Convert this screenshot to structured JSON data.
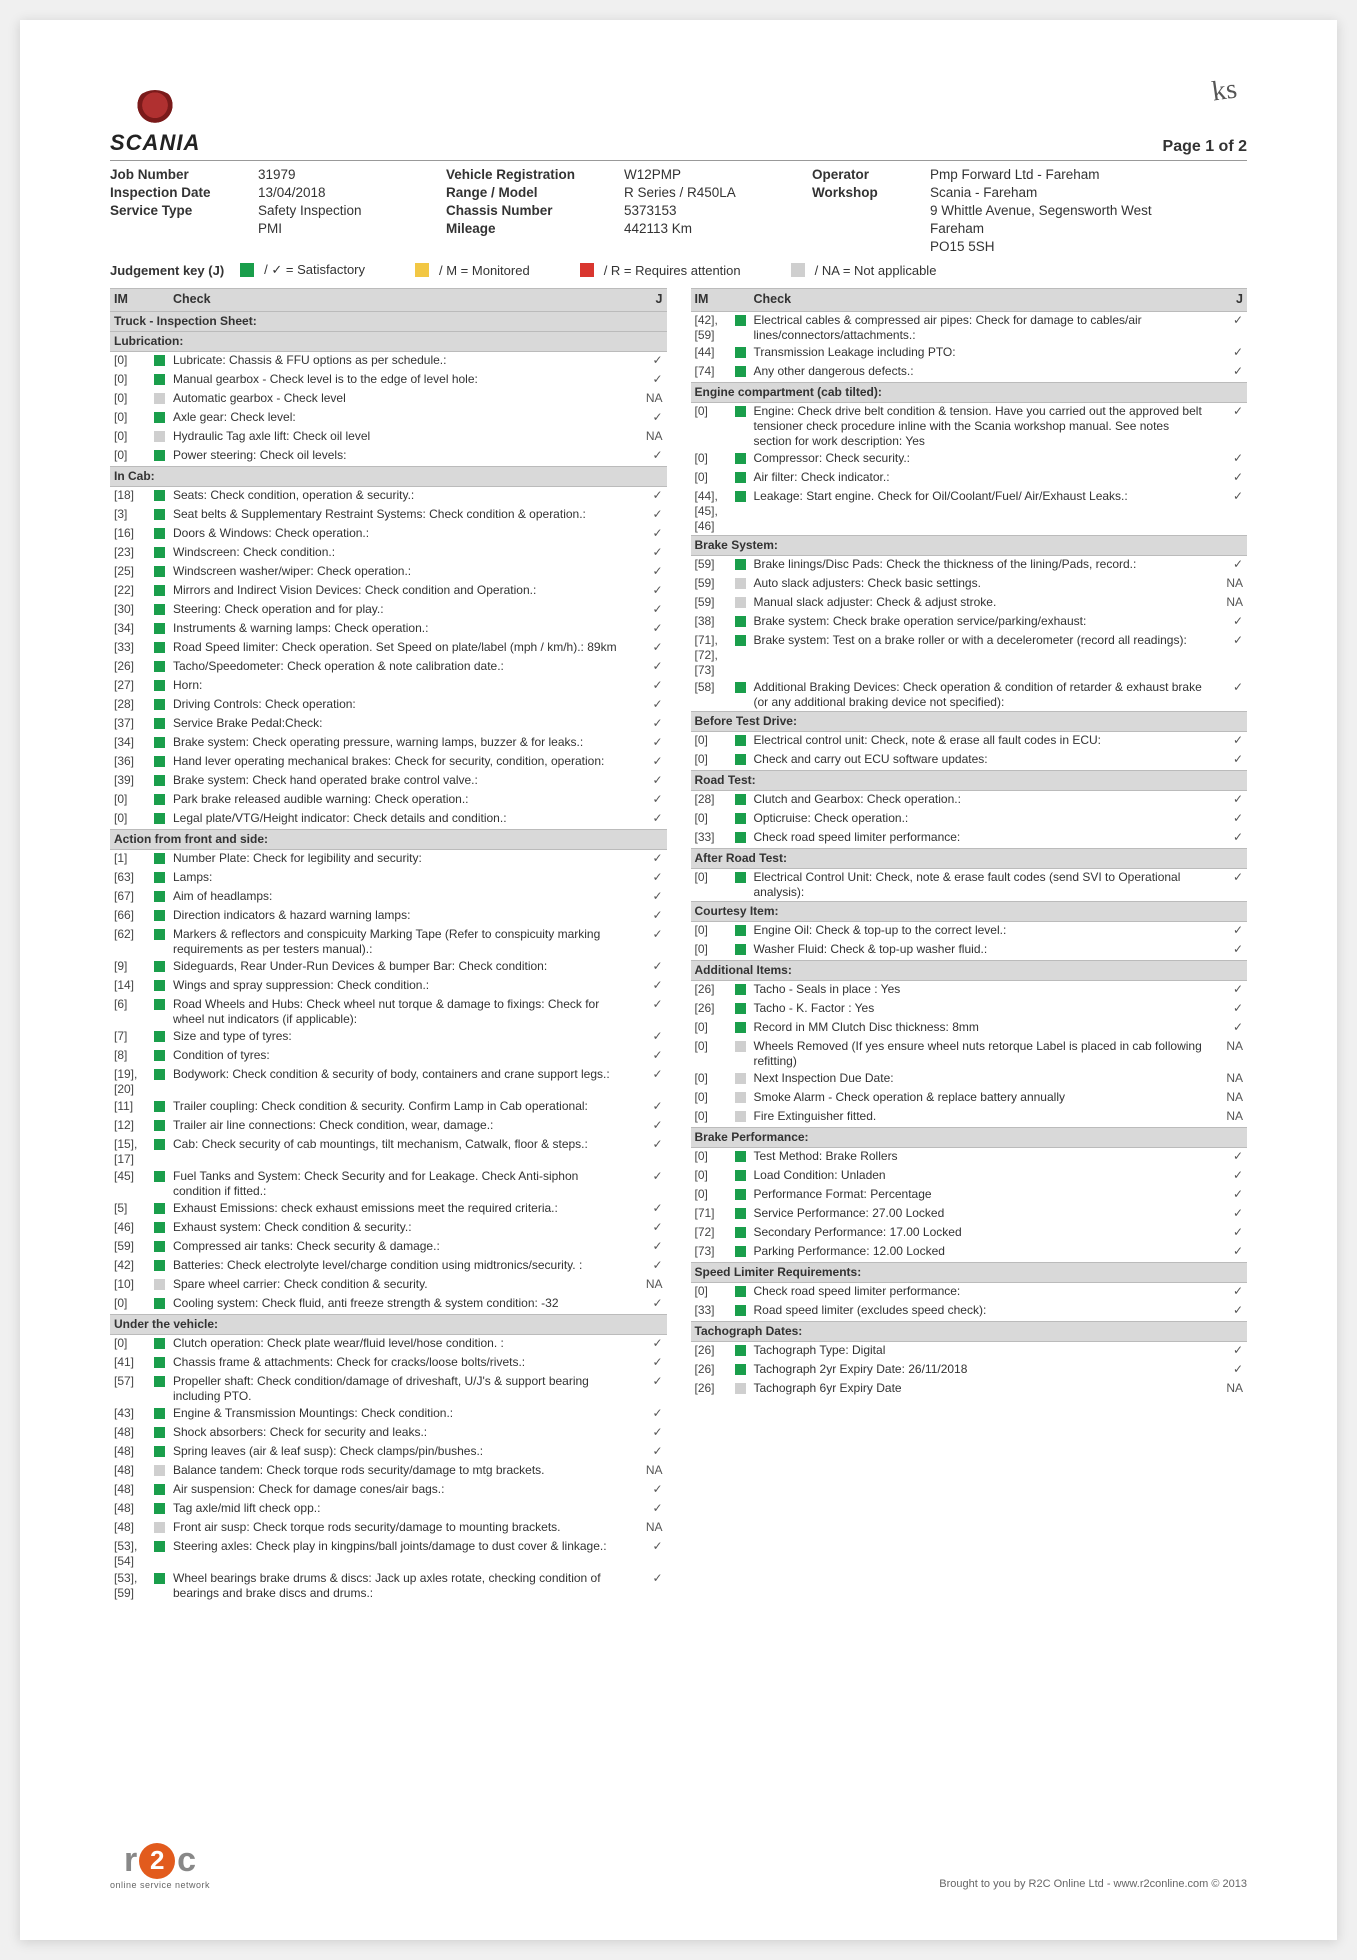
{
  "page_label": "Page 1 of 2",
  "brand": "SCANIA",
  "initials": "ks",
  "meta": {
    "job_number_l": "Job Number",
    "job_number": "31979",
    "vreg_l": "Vehicle Registration",
    "vreg": "W12PMP",
    "operator_l": "Operator",
    "operator": "Pmp Forward Ltd - Fareham",
    "insp_date_l": "Inspection Date",
    "insp_date": "13/04/2018",
    "range_l": "Range / Model",
    "range": "R Series / R450LA",
    "workshop_l": "Workshop",
    "workshop1": "Scania - Fareham",
    "workshop2": "9 Whittle Avenue, Segensworth West",
    "workshop3": "Fareham",
    "workshop4": "PO15 5SH",
    "svc_l": "Service Type",
    "svc1": "Safety Inspection",
    "svc2": "PMI",
    "chassis_l": "Chassis Number",
    "chassis": "5373153",
    "mileage_l": "Mileage",
    "mileage": "442113 Km"
  },
  "judgement": {
    "title": "Judgement key (J)",
    "sat": "/ ✓ = Satisfactory",
    "mon": "/ M = Monitored",
    "req": "/ R = Requires attention",
    "na": "/ NA = Not applicable"
  },
  "colors": {
    "green": "#1a9e4b",
    "amber": "#f2c744",
    "red": "#d9362f",
    "grey": "#cfcfcf"
  },
  "hdr": {
    "im": "IM",
    "check": "Check",
    "j": "J"
  },
  "left": [
    {
      "section": "Truck - Inspection Sheet:"
    },
    {
      "section": "Lubrication:"
    },
    {
      "im": "[0]",
      "c": "green",
      "t": "Lubricate: Chassis & FFU options as per schedule.:",
      "j": "✓"
    },
    {
      "im": "[0]",
      "c": "green",
      "t": "Manual gearbox - Check level is to the edge of level hole:",
      "j": "✓"
    },
    {
      "im": "[0]",
      "c": "grey",
      "t": "Automatic gearbox - Check level",
      "j": "NA"
    },
    {
      "im": "[0]",
      "c": "green",
      "t": "Axle gear: Check level:",
      "j": "✓"
    },
    {
      "im": "[0]",
      "c": "grey",
      "t": "Hydraulic Tag axle lift: Check oil level",
      "j": "NA"
    },
    {
      "im": "[0]",
      "c": "green",
      "t": "Power steering: Check oil levels:",
      "j": "✓"
    },
    {
      "section": "In Cab:"
    },
    {
      "im": "[18]",
      "c": "green",
      "t": "Seats: Check condition, operation & security.:",
      "j": "✓"
    },
    {
      "im": "[3]",
      "c": "green",
      "t": "Seat belts & Supplementary Restraint Systems: Check condition & operation.:",
      "j": "✓"
    },
    {
      "im": "[16]",
      "c": "green",
      "t": "Doors & Windows: Check operation.:",
      "j": "✓"
    },
    {
      "im": "[23]",
      "c": "green",
      "t": "Windscreen: Check condition.:",
      "j": "✓"
    },
    {
      "im": "[25]",
      "c": "green",
      "t": "Windscreen washer/wiper: Check operation.:",
      "j": "✓"
    },
    {
      "im": "[22]",
      "c": "green",
      "t": "Mirrors and Indirect Vision Devices: Check condition and Operation.:",
      "j": "✓"
    },
    {
      "im": "[30]",
      "c": "green",
      "t": "Steering: Check operation and for play.:",
      "j": "✓"
    },
    {
      "im": "[34]",
      "c": "green",
      "t": "Instruments & warning lamps: Check operation.:",
      "j": "✓"
    },
    {
      "im": "[33]",
      "c": "green",
      "t": "Road Speed limiter:  Check operation. Set Speed on plate/label (mph / km/h).: 89km",
      "j": "✓"
    },
    {
      "im": "[26]",
      "c": "green",
      "t": "Tacho/Speedometer: Check operation & note calibration date.:",
      "j": "✓"
    },
    {
      "im": "[27]",
      "c": "green",
      "t": "Horn:",
      "j": "✓"
    },
    {
      "im": "[28]",
      "c": "green",
      "t": "Driving Controls: Check operation:",
      "j": "✓"
    },
    {
      "im": "[37]",
      "c": "green",
      "t": "Service Brake Pedal:Check:",
      "j": "✓"
    },
    {
      "im": "[34]",
      "c": "green",
      "t": "Brake system: Check operating pressure, warning lamps, buzzer & for leaks.:",
      "j": "✓"
    },
    {
      "im": "[36]",
      "c": "green",
      "t": "Hand lever operating mechanical brakes: Check for security, condition, operation:",
      "j": "✓"
    },
    {
      "im": "[39]",
      "c": "green",
      "t": "Brake system: Check hand operated brake control valve.:",
      "j": "✓"
    },
    {
      "im": "[0]",
      "c": "green",
      "t": "Park brake released audible warning: Check operation.:",
      "j": "✓"
    },
    {
      "im": "[0]",
      "c": "green",
      "t": "Legal plate/VTG/Height indicator: Check details and condition.:",
      "j": "✓"
    },
    {
      "section": "Action from front and side:"
    },
    {
      "im": "[1]",
      "c": "green",
      "t": "Number Plate: Check for legibility and security:",
      "j": "✓"
    },
    {
      "im": "[63]",
      "c": "green",
      "t": "Lamps:",
      "j": "✓"
    },
    {
      "im": "[67]",
      "c": "green",
      "t": "Aim of headlamps:",
      "j": "✓"
    },
    {
      "im": "[66]",
      "c": "green",
      "t": "Direction indicators & hazard warning lamps:",
      "j": "✓"
    },
    {
      "im": "[62]",
      "c": "green",
      "t": "Markers & reflectors and conspicuity Marking Tape (Refer to conspicuity marking requirements as per testers manual).:",
      "j": "✓"
    },
    {
      "im": "[9]",
      "c": "green",
      "t": "Sideguards, Rear Under-Run Devices & bumper Bar: Check condition:",
      "j": "✓"
    },
    {
      "im": "[14]",
      "c": "green",
      "t": "Wings and spray suppression: Check condition.:",
      "j": "✓"
    },
    {
      "im": "[6]",
      "c": "green",
      "t": "Road Wheels and Hubs: Check wheel nut torque & damage to fixings: Check for wheel nut indicators (if applicable):",
      "j": "✓"
    },
    {
      "im": "[7]",
      "c": "green",
      "t": "Size and type of tyres:",
      "j": "✓"
    },
    {
      "im": "[8]",
      "c": "green",
      "t": "Condition of tyres:",
      "j": "✓"
    },
    {
      "im": "[19], [20]",
      "c": "green",
      "t": "Bodywork: Check condition & security of body, containers and crane support legs.:",
      "j": "✓"
    },
    {
      "im": "[11]",
      "c": "green",
      "t": "Trailer coupling: Check condition & security. Confirm Lamp in Cab operational:",
      "j": "✓"
    },
    {
      "im": "[12]",
      "c": "green",
      "t": "Trailer air line connections: Check condition, wear, damage.:",
      "j": "✓"
    },
    {
      "im": "[15], [17]",
      "c": "green",
      "t": "Cab: Check security of cab mountings, tilt mechanism, Catwalk, floor & steps.:",
      "j": "✓"
    },
    {
      "im": "[45]",
      "c": "green",
      "t": "Fuel Tanks and System: Check Security and for Leakage. Check Anti-siphon condition if fitted.:",
      "j": "✓"
    },
    {
      "im": "[5]",
      "c": "green",
      "t": "Exhaust Emissions: check exhaust emissions meet the required criteria.:",
      "j": "✓"
    },
    {
      "im": "[46]",
      "c": "green",
      "t": "Exhaust system: Check condition & security.:",
      "j": "✓"
    },
    {
      "im": "[59]",
      "c": "green",
      "t": "Compressed air tanks: Check security & damage.:",
      "j": "✓"
    },
    {
      "im": "[42]",
      "c": "green",
      "t": "Batteries: Check electrolyte level/charge condition using midtronics/security. :",
      "j": "✓"
    },
    {
      "im": "[10]",
      "c": "grey",
      "t": "Spare wheel carrier: Check condition & security.",
      "j": "NA"
    },
    {
      "im": "[0]",
      "c": "green",
      "t": "Cooling system: Check fluid, anti freeze strength & system condition: -32",
      "j": "✓"
    },
    {
      "section": "Under the vehicle:"
    },
    {
      "im": "[0]",
      "c": "green",
      "t": "Clutch operation: Check plate wear/fluid level/hose condition. :",
      "j": "✓"
    },
    {
      "im": "[41]",
      "c": "green",
      "t": "Chassis frame & attachments: Check for cracks/loose bolts/rivets.:",
      "j": "✓"
    },
    {
      "im": "[57]",
      "c": "green",
      "t": "Propeller shaft: Check condition/damage of driveshaft, U/J's & support bearing including PTO.",
      "j": "✓"
    },
    {
      "im": "[43]",
      "c": "green",
      "t": "Engine & Transmission Mountings: Check condition.:",
      "j": "✓"
    },
    {
      "im": "[48]",
      "c": "green",
      "t": "Shock absorbers: Check for security and leaks.:",
      "j": "✓"
    },
    {
      "im": "[48]",
      "c": "green",
      "t": "Spring leaves (air & leaf susp): Check clamps/pin/bushes.:",
      "j": "✓"
    },
    {
      "im": "[48]",
      "c": "grey",
      "t": "Balance tandem: Check torque rods security/damage to mtg brackets.",
      "j": "NA"
    },
    {
      "im": "[48]",
      "c": "green",
      "t": "Air suspension: Check for damage cones/air bags.:",
      "j": "✓"
    },
    {
      "im": "[48]",
      "c": "green",
      "t": "Tag axle/mid lift check opp.:",
      "j": "✓"
    },
    {
      "im": "[48]",
      "c": "grey",
      "t": "Front air susp: Check torque rods security/damage to mounting brackets.",
      "j": "NA"
    },
    {
      "im": "[53], [54]",
      "c": "green",
      "t": "Steering axles: Check play in kingpins/ball joints/damage to dust cover & linkage.:",
      "j": "✓"
    },
    {
      "im": "[53], [59]",
      "c": "green",
      "t": "Wheel bearings brake drums & discs: Jack up axles rotate, checking condition of bearings and brake discs and drums.:",
      "j": "✓"
    }
  ],
  "right": [
    {
      "im": "[42], [59]",
      "c": "green",
      "t": "Electrical cables & compressed air pipes: Check for damage to cables/air lines/connectors/attachments.:",
      "j": "✓"
    },
    {
      "im": "[44]",
      "c": "green",
      "t": "Transmission Leakage including PTO:",
      "j": "✓"
    },
    {
      "im": "[74]",
      "c": "green",
      "t": "Any other dangerous defects.:",
      "j": "✓"
    },
    {
      "section": "Engine compartment (cab tilted):"
    },
    {
      "im": "[0]",
      "c": "green",
      "t": "Engine: Check drive belt condition & tension. Have you carried out the approved belt tensioner check procedure inline with the Scania workshop manual. See notes section for work description: Yes",
      "j": "✓"
    },
    {
      "im": "[0]",
      "c": "green",
      "t": "Compressor: Check security.:",
      "j": "✓"
    },
    {
      "im": "[0]",
      "c": "green",
      "t": "Air filter: Check indicator.:",
      "j": "✓"
    },
    {
      "im": "[44], [45], [46]",
      "c": "green",
      "t": "Leakage: Start engine. Check for Oil/Coolant/Fuel/ Air/Exhaust Leaks.:",
      "j": "✓"
    },
    {
      "section": "Brake System:"
    },
    {
      "im": "[59]",
      "c": "green",
      "t": "Brake linings/Disc Pads: Check the thickness of the lining/Pads, record.:",
      "j": "✓"
    },
    {
      "im": "[59]",
      "c": "grey",
      "t": "Auto slack adjusters: Check basic settings.",
      "j": "NA"
    },
    {
      "im": "[59]",
      "c": "grey",
      "t": "Manual slack adjuster: Check & adjust stroke.",
      "j": "NA"
    },
    {
      "im": "[38]",
      "c": "green",
      "t": "Brake system: Check brake operation service/parking/exhaust:",
      "j": "✓"
    },
    {
      "im": "[71], [72], [73]",
      "c": "green",
      "t": "Brake system: Test on a brake roller or with a decelerometer (record all readings):",
      "j": "✓"
    },
    {
      "im": "[58]",
      "c": "green",
      "t": "Additional Braking Devices: Check operation & condition of retarder & exhaust brake (or any additional braking device not specified):",
      "j": "✓"
    },
    {
      "section": "Before Test Drive:"
    },
    {
      "im": "[0]",
      "c": "green",
      "t": "Electrical control unit: Check, note & erase all fault codes in ECU:",
      "j": "✓"
    },
    {
      "im": "[0]",
      "c": "green",
      "t": "Check and carry out ECU software updates:",
      "j": "✓"
    },
    {
      "section": "Road Test:"
    },
    {
      "im": "[28]",
      "c": "green",
      "t": "Clutch and Gearbox: Check operation.:",
      "j": "✓"
    },
    {
      "im": "[0]",
      "c": "green",
      "t": "Opticruise: Check operation.:",
      "j": "✓"
    },
    {
      "im": "[33]",
      "c": "green",
      "t": "Check road speed limiter performance:",
      "j": "✓"
    },
    {
      "section": "After Road Test:"
    },
    {
      "im": "[0]",
      "c": "green",
      "t": "Electrical Control Unit: Check, note & erase fault codes (send SVI to Operational analysis):",
      "j": "✓"
    },
    {
      "section": "Courtesy Item:"
    },
    {
      "im": "[0]",
      "c": "green",
      "t": "Engine Oil: Check & top-up to the correct level.:",
      "j": "✓"
    },
    {
      "im": "[0]",
      "c": "green",
      "t": "Washer Fluid: Check & top-up washer fluid.:",
      "j": "✓"
    },
    {
      "section": "Additional Items:"
    },
    {
      "im": "[26]",
      "c": "green",
      "t": "Tacho - Seals in place : Yes",
      "j": "✓"
    },
    {
      "im": "[26]",
      "c": "green",
      "t": "Tacho - K. Factor : Yes",
      "j": "✓"
    },
    {
      "im": "[0]",
      "c": "green",
      "t": "Record in MM Clutch Disc thickness: 8mm",
      "j": "✓"
    },
    {
      "im": "[0]",
      "c": "grey",
      "t": "Wheels Removed (If yes ensure wheel nuts retorque Label is placed in cab following refitting)",
      "j": "NA"
    },
    {
      "im": "[0]",
      "c": "grey",
      "t": "Next Inspection Due Date:",
      "j": "NA"
    },
    {
      "im": "[0]",
      "c": "grey",
      "t": "Smoke Alarm - Check operation & replace battery annually",
      "j": "NA"
    },
    {
      "im": "[0]",
      "c": "grey",
      "t": "Fire Extinguisher fitted.",
      "j": "NA"
    },
    {
      "section": "Brake Performance:"
    },
    {
      "im": "[0]",
      "c": "green",
      "t": "Test Method: Brake Rollers",
      "j": "✓"
    },
    {
      "im": "[0]",
      "c": "green",
      "t": "Load Condition: Unladen",
      "j": "✓"
    },
    {
      "im": "[0]",
      "c": "green",
      "t": "Performance Format: Percentage",
      "j": "✓"
    },
    {
      "im": "[71]",
      "c": "green",
      "t": "Service Performance: 27.00 Locked",
      "j": "✓"
    },
    {
      "im": "[72]",
      "c": "green",
      "t": "Secondary Performance: 17.00 Locked",
      "j": "✓"
    },
    {
      "im": "[73]",
      "c": "green",
      "t": "Parking Performance: 12.00 Locked",
      "j": "✓"
    },
    {
      "section": "Speed Limiter Requirements:"
    },
    {
      "im": "[0]",
      "c": "green",
      "t": "Check road speed limiter performance:",
      "j": "✓"
    },
    {
      "im": "[33]",
      "c": "green",
      "t": "Road speed limiter (excludes speed check):",
      "j": "✓"
    },
    {
      "section": "Tachograph Dates:"
    },
    {
      "im": "[26]",
      "c": "green",
      "t": "Tachograph Type: Digital",
      "j": "✓"
    },
    {
      "im": "[26]",
      "c": "green",
      "t": "Tachograph 2yr Expiry Date: 26/11/2018",
      "j": "✓"
    },
    {
      "im": "[26]",
      "c": "grey",
      "t": "Tachograph 6yr Expiry Date",
      "j": "NA"
    }
  ],
  "footer": {
    "brand_sub": "online service network",
    "credit": "Brought to you by R2C Online Ltd - www.r2conline.com © 2013"
  }
}
